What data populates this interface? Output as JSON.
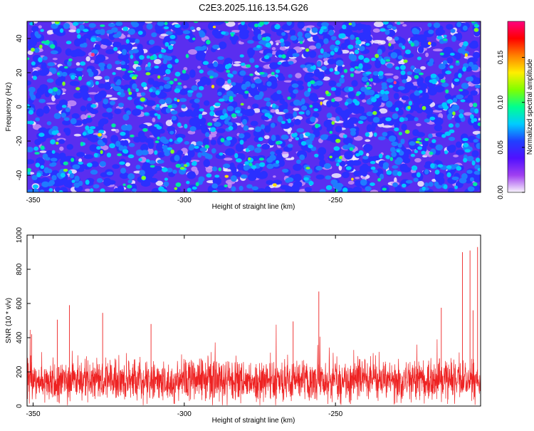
{
  "title": "C2E3.2025.116.13.54.G26",
  "colors": {
    "snr_line": "#ee2222",
    "axis": "#000000",
    "colorbar_stops": [
      "#f8f4fc",
      "#a040f0",
      "#5010ff",
      "#2040ff",
      "#00ccff",
      "#00ff90",
      "#80ff00",
      "#ffee00",
      "#ff8000",
      "#ff0000",
      "#ff0080"
    ]
  },
  "chart_data": [
    {
      "type": "heatmap",
      "title": "C2E3.2025.116.13.54.G26",
      "xlabel": "Height of straight line (km)",
      "ylabel": "Frequency (Hz)",
      "xlim": [
        -352,
        -202
      ],
      "ylim": [
        -50,
        50
      ],
      "xticks": [
        -350,
        -300,
        -250
      ],
      "xtick_labels": [
        "-350",
        "-300",
        "-250"
      ],
      "yticks": [
        40,
        20,
        0,
        -20,
        -40
      ],
      "ytick_labels": [
        "40",
        "20",
        "0",
        "-20",
        "-40"
      ],
      "colorbar": {
        "label": "Normalized spectral amplitude",
        "range": [
          0,
          0.19
        ],
        "ticks": [
          0.0,
          0.05,
          0.1,
          0.15
        ],
        "tick_labels": [
          "0.00",
          "0.05",
          "0.10",
          "0.15"
        ]
      }
    },
    {
      "type": "line",
      "xlabel": "Height of straight line (km)",
      "ylabel": "SNR (10 * v/v)",
      "xlim": [
        -352,
        -202
      ],
      "ylim": [
        0,
        1000
      ],
      "xticks": [
        -350,
        -300,
        -250
      ],
      "xtick_labels": [
        "-350",
        "-300",
        "-250"
      ],
      "yticks": [
        0,
        200,
        400,
        600,
        800,
        1000
      ],
      "ytick_labels": [
        "0",
        "200",
        "400",
        "600",
        "800",
        "1000"
      ],
      "notable_peaks": [
        {
          "x": -350.5,
          "y": 420
        },
        {
          "x": -342,
          "y": 505
        },
        {
          "x": -338,
          "y": 590
        },
        {
          "x": -327,
          "y": 545
        },
        {
          "x": -311,
          "y": 480
        },
        {
          "x": -264,
          "y": 495
        },
        {
          "x": -255.5,
          "y": 670
        },
        {
          "x": -215,
          "y": 575
        },
        {
          "x": -208,
          "y": 900
        },
        {
          "x": -205.5,
          "y": 910
        },
        {
          "x": -204.5,
          "y": 560
        },
        {
          "x": -203,
          "y": 930
        }
      ],
      "baseline_mean": 150,
      "baseline_spread": 60
    }
  ]
}
